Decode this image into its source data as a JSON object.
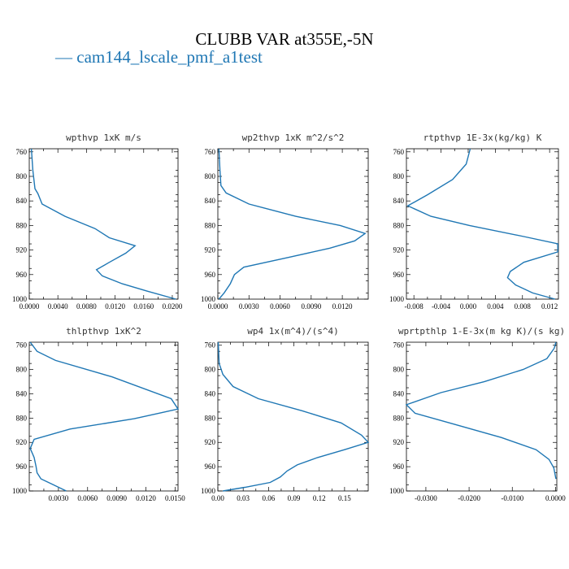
{
  "title": "CLUBB VAR at355E,-5N",
  "legend": {
    "label": "— cam144_lscale_pmf_a1test",
    "color": "#1f77b4"
  },
  "chart_data": [
    {
      "type": "line",
      "title": "wpthvp  1xK m/s",
      "xlim": [
        0.0,
        0.0208
      ],
      "ylim": [
        1000,
        755
      ],
      "xticks": [
        0.0,
        0.004,
        0.008,
        0.012,
        0.016,
        0.02
      ],
      "xtick_labels": [
        "0.0000",
        "0.0040",
        "0.0080",
        "0.0120",
        "0.0160",
        "0.0200"
      ],
      "yticks": [
        760,
        800,
        840,
        880,
        920,
        960,
        1000
      ],
      "ytick_labels": [
        "760",
        "800",
        "840",
        "880",
        "920",
        "960",
        "1000"
      ],
      "series": [
        {
          "x": [
            0.0003,
            0.0005,
            0.0008,
            0.0012,
            0.0018,
            0.005,
            0.0092,
            0.0112,
            0.0148,
            0.0135,
            0.0112,
            0.0094,
            0.0102,
            0.013,
            0.0165,
            0.0205
          ],
          "y": [
            755,
            790,
            820,
            828,
            845,
            865,
            885,
            900,
            913,
            925,
            940,
            952,
            962,
            975,
            987,
            1000
          ]
        }
      ]
    },
    {
      "type": "line",
      "title": "wp2thvp  1xK m^2/s^2",
      "xlim": [
        0.0,
        0.0145
      ],
      "ylim": [
        1000,
        755
      ],
      "xticks": [
        0.0,
        0.003,
        0.006,
        0.009,
        0.012
      ],
      "xtick_labels": [
        "0.0000",
        "0.0030",
        "0.0060",
        "0.0090",
        "0.0120"
      ],
      "yticks": [
        760,
        800,
        840,
        880,
        920,
        960,
        1000
      ],
      "ytick_labels": [
        "760",
        "800",
        "840",
        "880",
        "920",
        "960",
        "1000"
      ],
      "series": [
        {
          "x": [
            0.0001,
            0.0002,
            0.0003,
            0.0008,
            0.003,
            0.0075,
            0.0118,
            0.0142,
            0.0132,
            0.0108,
            0.0068,
            0.0025,
            0.0016,
            0.0012,
            0.0006,
            0.0001
          ],
          "y": [
            755,
            790,
            815,
            827,
            845,
            865,
            880,
            893,
            905,
            917,
            932,
            948,
            960,
            975,
            990,
            1000
          ]
        }
      ]
    },
    {
      "type": "line",
      "title": "rtpthvp  1E-3x(kg/kg) K",
      "xlim": [
        -0.0091,
        0.0133
      ],
      "ylim": [
        1000,
        755
      ],
      "xticks": [
        -0.008,
        -0.004,
        0.0,
        0.004,
        0.008,
        0.012
      ],
      "xtick_labels": [
        "-0.008",
        "-0.004",
        "0.000",
        "0.004",
        "0.008",
        "0.012"
      ],
      "yticks": [
        760,
        800,
        840,
        880,
        920,
        960,
        1000
      ],
      "ytick_labels": [
        "760",
        "800",
        "840",
        "880",
        "920",
        "960",
        "1000"
      ],
      "series": [
        {
          "x": [
            0.0003,
            -0.0003,
            -0.0023,
            -0.006,
            -0.0089,
            -0.0055,
            0.0002,
            0.0082,
            0.0132,
            0.0132,
            0.0082,
            0.0062,
            0.0058,
            0.007,
            0.0095,
            0.0128
          ],
          "y": [
            755,
            780,
            805,
            830,
            848,
            865,
            880,
            898,
            910,
            923,
            940,
            955,
            965,
            977,
            990,
            1000
          ]
        }
      ]
    },
    {
      "type": "line",
      "title": "thlpthvp  1xK^2",
      "xlim": [
        0.0,
        0.0153
      ],
      "ylim": [
        1000,
        755
      ],
      "xticks": [
        0.003,
        0.006,
        0.009,
        0.012,
        0.015
      ],
      "xtick_labels": [
        "0.0030",
        "0.0060",
        "0.0090",
        "0.0120",
        "0.0150"
      ],
      "yticks": [
        760,
        800,
        840,
        880,
        920,
        960,
        1000
      ],
      "ytick_labels": [
        "760",
        "800",
        "840",
        "880",
        "920",
        "960",
        "1000"
      ],
      "series": [
        {
          "x": [
            0.0001,
            0.0008,
            0.0027,
            0.0085,
            0.0146,
            0.0153,
            0.0108,
            0.0042,
            0.0005,
            0.0001,
            0.0005,
            0.0007,
            0.0008,
            0.0012,
            0.0025,
            0.0038
          ],
          "y": [
            755,
            770,
            785,
            812,
            848,
            865,
            881,
            898,
            915,
            930,
            945,
            960,
            970,
            980,
            990,
            1000
          ]
        }
      ]
    },
    {
      "type": "line",
      "title": "wp4  1x(m^4)/(s^4)",
      "xlim": [
        0.0,
        0.178
      ],
      "ylim": [
        1000,
        755
      ],
      "xticks": [
        0.0,
        0.03,
        0.06,
        0.09,
        0.12,
        0.15
      ],
      "xtick_labels": [
        "0.00",
        "0.03",
        "0.06",
        "0.09",
        "0.12",
        "0.15"
      ],
      "yticks": [
        760,
        800,
        840,
        880,
        920,
        960,
        1000
      ],
      "ytick_labels": [
        "760",
        "800",
        "840",
        "880",
        "920",
        "960",
        "1000"
      ],
      "series": [
        {
          "x": [
            0.0005,
            0.0015,
            0.006,
            0.018,
            0.048,
            0.1,
            0.146,
            0.17,
            0.178,
            0.15,
            0.118,
            0.094,
            0.082,
            0.074,
            0.062,
            0.032,
            0.006
          ],
          "y": [
            755,
            790,
            808,
            828,
            848,
            868,
            888,
            908,
            920,
            932,
            945,
            957,
            967,
            977,
            986,
            994,
            1000
          ]
        }
      ]
    },
    {
      "type": "line",
      "title": "wprtpthlp  1-E-3x(m kg K)/(s kg)",
      "xlim": [
        -0.0345,
        0.0003
      ],
      "ylim": [
        1000,
        755
      ],
      "xticks": [
        -0.03,
        -0.02,
        -0.01,
        0.0
      ],
      "xtick_labels": [
        "-0.0300",
        "-0.0200",
        "-0.0100",
        "0.0000"
      ],
      "yticks": [
        760,
        800,
        840,
        880,
        920,
        960,
        1000
      ],
      "ytick_labels": [
        "760",
        "800",
        "840",
        "880",
        "920",
        "960",
        "1000"
      ],
      "series": [
        {
          "x": [
            0.0001,
            -0.0003,
            -0.002,
            -0.0075,
            -0.0165,
            -0.0265,
            -0.0345,
            -0.0325,
            -0.0235,
            -0.0125,
            -0.0045,
            -0.0015,
            -0.0004,
            0.0001
          ],
          "y": [
            755,
            765,
            782,
            800,
            820,
            838,
            858,
            872,
            890,
            912,
            932,
            948,
            962,
            980
          ]
        }
      ]
    }
  ]
}
